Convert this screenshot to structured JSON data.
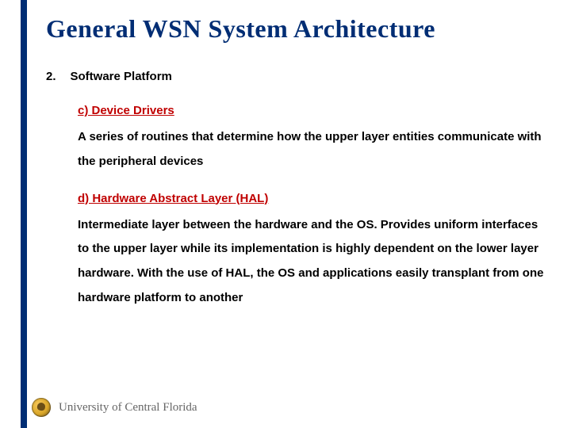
{
  "colors": {
    "accent_bar": "#002d74",
    "title": "#002d74",
    "subheading": "#c00000",
    "body_text": "#000000",
    "footer_text": "#666666",
    "background": "#ffffff"
  },
  "typography": {
    "title_family": "Comic Sans MS",
    "title_size_pt": 24,
    "body_family": "Arial",
    "body_size_pt": 11,
    "body_weight": "bold",
    "footer_family": "Georgia",
    "footer_size_pt": 11
  },
  "title": "General WSN System Architecture",
  "section": {
    "number": "2.",
    "label": "Software Platform"
  },
  "items": [
    {
      "heading": "c) Device Drivers",
      "body": "A series of routines that determine how the upper layer entities communicate with the peripheral devices"
    },
    {
      "heading": "d) Hardware Abstract Layer (HAL)",
      "body": "Intermediate layer between the hardware and the OS. Provides uniform interfaces to the upper layer while its implementation is highly dependent on the lower layer hardware. With the use of HAL, the OS and applications easily transplant from one hardware platform to another"
    }
  ],
  "footer": {
    "university": "University of Central Florida"
  }
}
